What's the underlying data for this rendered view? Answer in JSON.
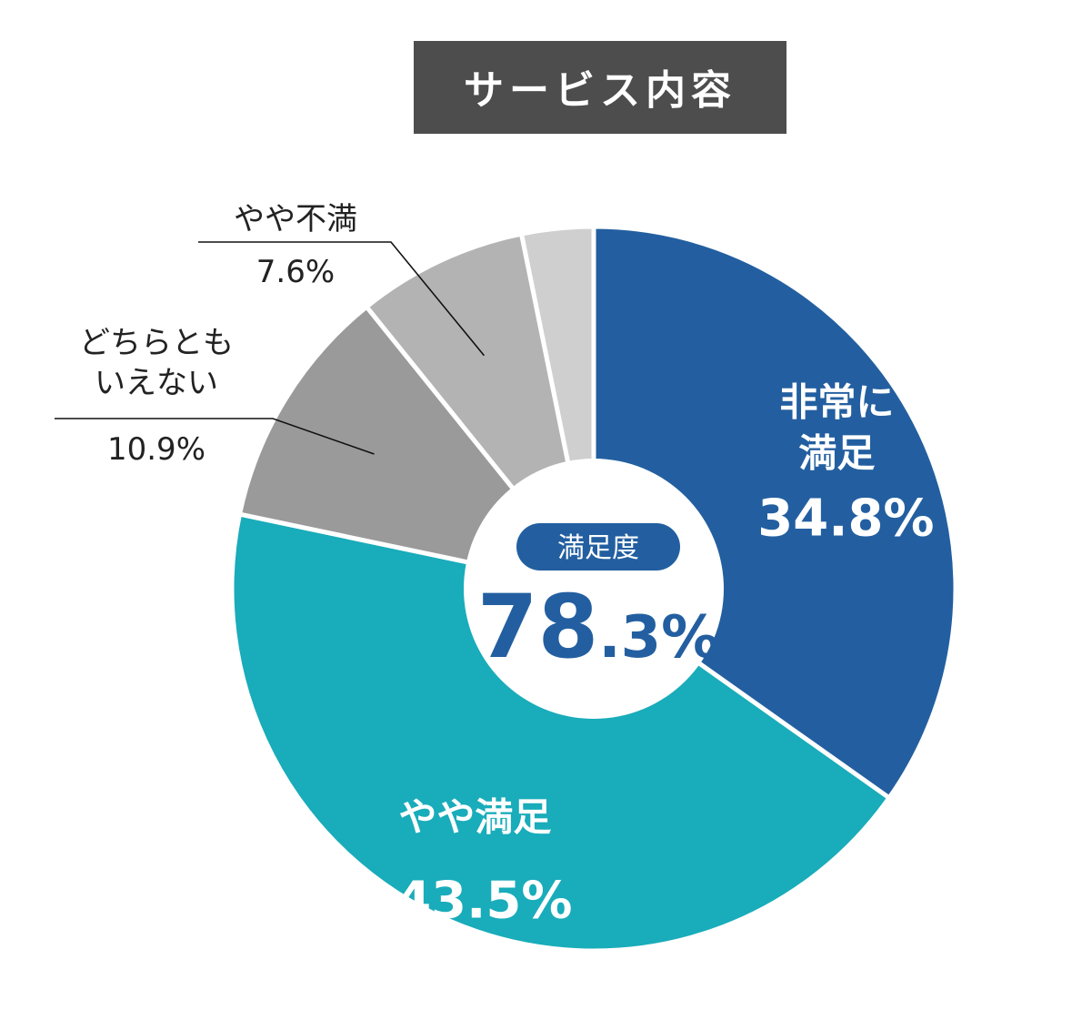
{
  "chart_data": {
    "type": "pie",
    "title": "サービス内容",
    "center": {
      "label": "満足度",
      "value_main": "78",
      "value_decimal": ".3%"
    },
    "slices": [
      {
        "name_lines": [
          "非常に",
          "満足"
        ],
        "value": 34.8,
        "value_label": "34.8%",
        "color": "#235fa0"
      },
      {
        "name_lines": [
          "やや満足"
        ],
        "value": 43.5,
        "value_label": "43.5%",
        "color": "#19acba"
      },
      {
        "name_lines": [
          "どちらとも",
          "いえない"
        ],
        "value": 10.9,
        "value_label": "10.9%",
        "color": "#9a9a9a"
      },
      {
        "name_lines": [
          "やや不満"
        ],
        "value": 7.6,
        "value_label": "7.6%",
        "color": "#b3b3b3"
      },
      {
        "name_lines": [],
        "value": 3.2,
        "value_label": "",
        "color": "#cfcfcf"
      }
    ]
  }
}
